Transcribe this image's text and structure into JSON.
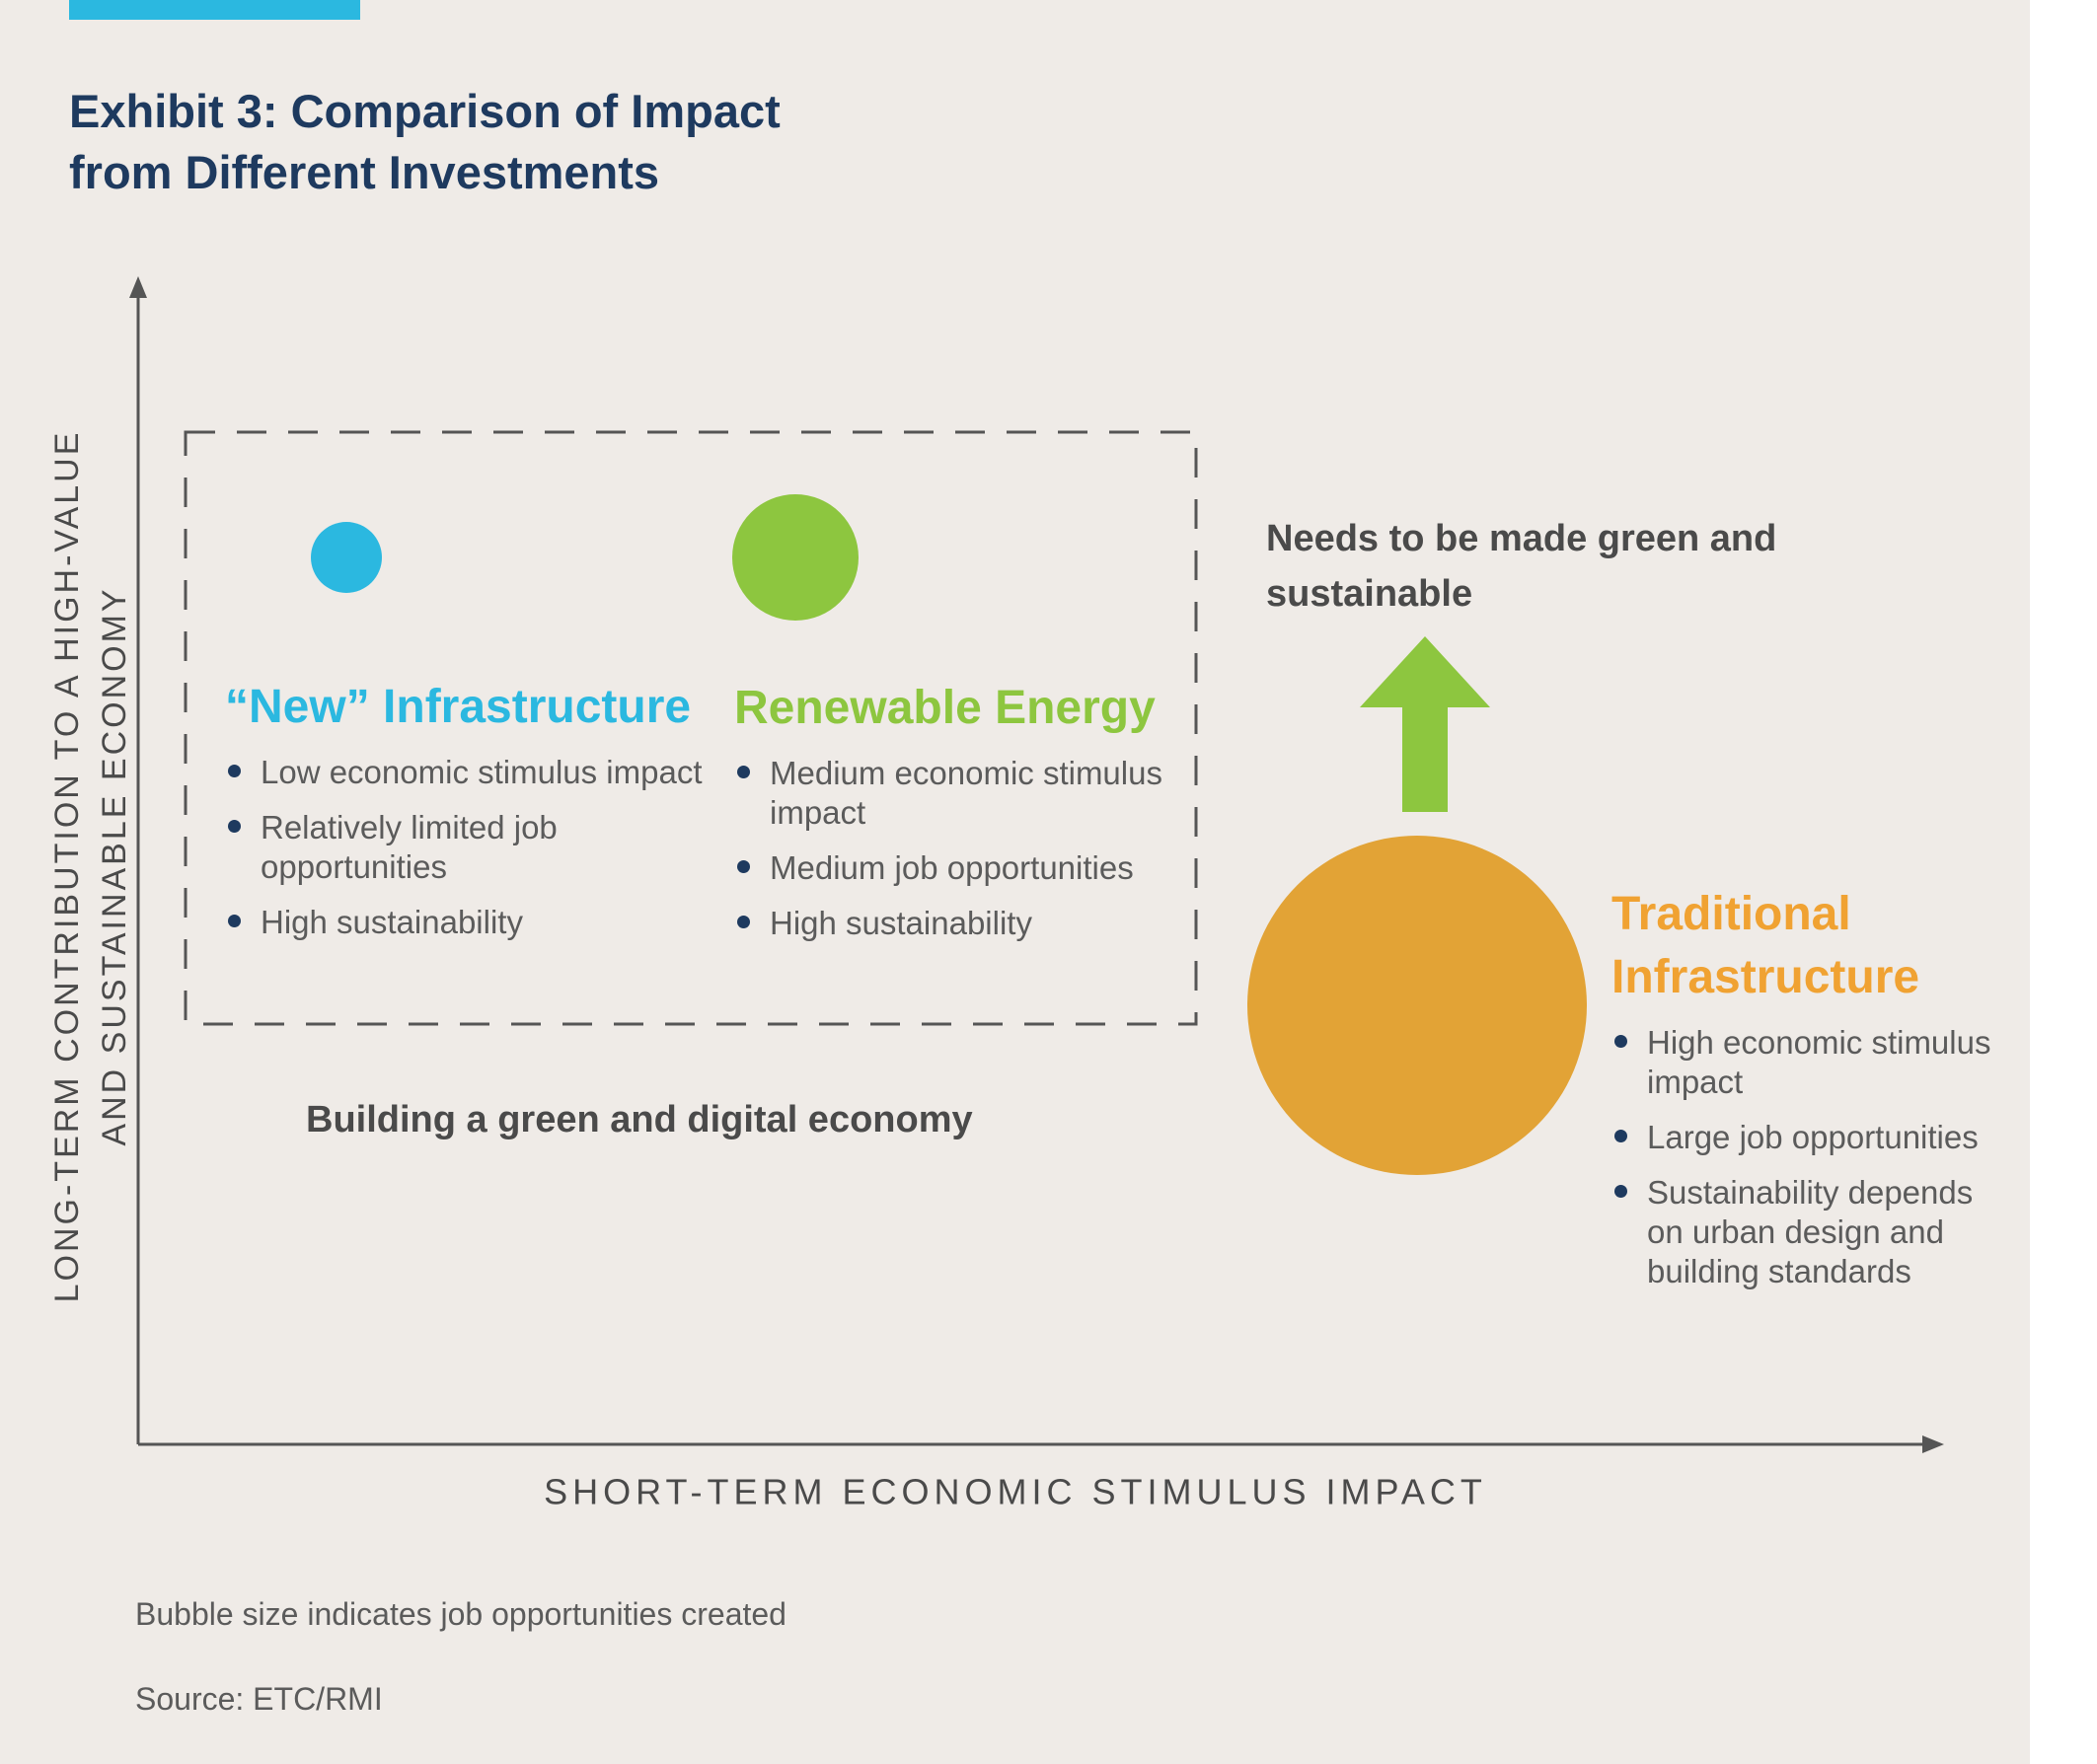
{
  "header": {
    "title_lines": [
      "Exhibit 3: Comparison of Impact",
      "from Different Investments"
    ],
    "accent_color": "#2bb8e0",
    "title_color": "#1e3a5f",
    "background_color": "#efebe7"
  },
  "chart_data": {
    "type": "scatter",
    "title": "Exhibit 3: Comparison of Impact from Different Investments",
    "xlabel": "SHORT-TERM ECONOMIC STIMULUS IMPACT",
    "ylabel_lines": [
      "LONG-TERM CONTRIBUTION TO A HIGH-VALUE",
      "AND SUSTAINABLE ECONOMY"
    ],
    "xlim": [
      "low",
      "high"
    ],
    "ylim": [
      "low",
      "high"
    ],
    "grid": false,
    "size_legend": "Bubble size indicates job opportunities created",
    "points": [
      {
        "name": "“New” Infrastructure",
        "color": "#2bb8e0",
        "x": "low",
        "y": "high",
        "size": "small",
        "bullets": [
          "Low economic stimulus impact",
          "Relatively limited job opportunities",
          "High sustainability"
        ]
      },
      {
        "name": "Renewable Energy",
        "color": "#8dc63f",
        "x": "medium",
        "y": "high",
        "size": "medium",
        "bullets": [
          "Medium economic stimulus impact",
          "Medium job opportunities",
          "High sustainability"
        ]
      },
      {
        "name": "Traditional Infrastructure",
        "name_lines": [
          "Traditional",
          "Infrastructure"
        ],
        "color": "#e2a336",
        "label_color": "#f0a232",
        "x": "high",
        "y": "low",
        "size": "large",
        "bullets": [
          "High economic stimulus impact",
          "Large job opportunities",
          "Sustainability depends on urban design and building standards"
        ]
      }
    ],
    "annotations": {
      "group_box_label": "Building a green and digital economy",
      "arrow_label": "Needs to be made green and sustainable",
      "arrow_label_lines": [
        "Needs to be made green and",
        "sustainable"
      ],
      "arrow_color": "#8dc63f",
      "arrow_direction": "up"
    }
  },
  "footer": {
    "note": "Bubble size indicates job opportunities created",
    "source": "Source: ETC/RMI"
  }
}
